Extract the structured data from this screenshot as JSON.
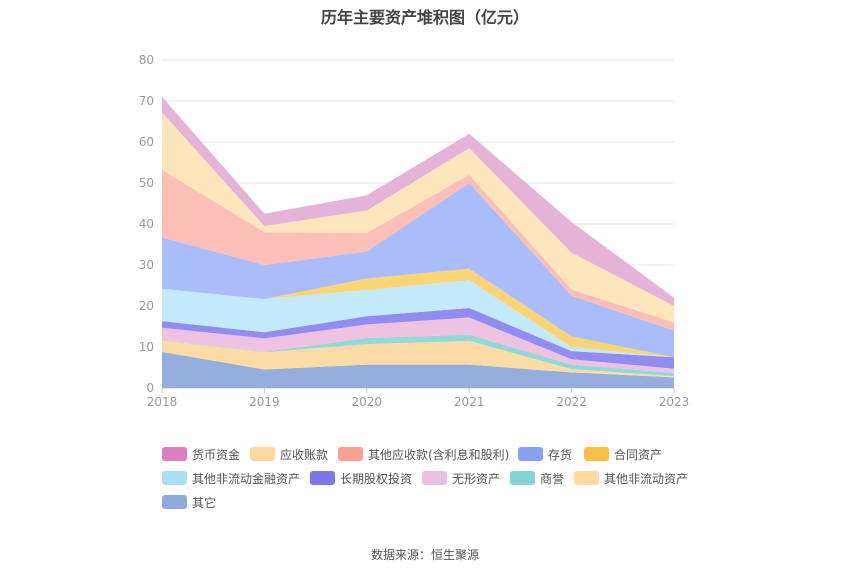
{
  "chart_data": {
    "type": "area",
    "stacked": true,
    "title": "历年主要资产堆积图（亿元）",
    "xlabel": "",
    "ylabel": "",
    "categories": [
      "2018",
      "2019",
      "2020",
      "2021",
      "2022",
      "2023"
    ],
    "ylim": [
      0,
      80
    ],
    "yticks": [
      0,
      10,
      20,
      30,
      40,
      50,
      60,
      70,
      80
    ],
    "grid": true,
    "legend_position": "bottom",
    "series": [
      {
        "name": "其它",
        "color": "#8faadc",
        "values": [
          8.8,
          4.5,
          5.7,
          5.7,
          3.8,
          2.6
        ]
      },
      {
        "name": "其他非流动资产",
        "color": "#fdd9a0",
        "values": [
          2.8,
          4.2,
          5.0,
          5.8,
          0.8,
          0.3
        ]
      },
      {
        "name": "商誉",
        "color": "#8dd6d6",
        "values": [
          0.1,
          0.1,
          1.5,
          1.5,
          1.1,
          0.8
        ]
      },
      {
        "name": "无形资产",
        "color": "#eebfe0",
        "values": [
          3.0,
          3.3,
          3.3,
          4.2,
          1.3,
          1.0
        ]
      },
      {
        "name": "长期股权投资",
        "color": "#8b86ee",
        "values": [
          1.6,
          1.5,
          2.0,
          2.3,
          2.0,
          2.8
        ]
      },
      {
        "name": "其他非流动金融资产",
        "color": "#bfe9fb",
        "values": [
          7.9,
          8.1,
          6.4,
          6.8,
          1.0,
          0.0
        ]
      },
      {
        "name": "合同资产",
        "color": "#fad36f",
        "values": [
          0.0,
          0.0,
          2.8,
          2.8,
          2.6,
          0.0
        ]
      },
      {
        "name": "存货",
        "color": "#a6b8fb",
        "values": [
          12.5,
          8.3,
          6.6,
          20.9,
          9.9,
          6.5
        ]
      },
      {
        "name": "其他应收款(含利息和股利)",
        "color": "#fbbcb3",
        "values": [
          16.5,
          8.0,
          4.5,
          2.0,
          1.5,
          2.0
        ]
      },
      {
        "name": "应收账款",
        "color": "#fde4b8",
        "values": [
          14.0,
          1.5,
          5.5,
          6.5,
          9.0,
          4.0
        ]
      },
      {
        "name": "货币资金",
        "color": "#e5afd6",
        "values": [
          3.8,
          3.0,
          3.7,
          3.5,
          7.5,
          2.0
        ]
      }
    ],
    "legend_order": [
      "货币资金",
      "应收账款",
      "其他应收款(含利息和股利)",
      "存货",
      "合同资产",
      "其他非流动金融资产",
      "长期股权投资",
      "无形资产",
      "商誉",
      "其他非流动资产",
      "其它"
    ],
    "legend_colors": {
      "货币资金": "#db7fc0",
      "应收账款": "#fdd9a0",
      "其他应收款(含利息和股利)": "#f8a093",
      "存货": "#85a2f5",
      "合同资产": "#f8c040",
      "其他非流动金融资产": "#a8dff5",
      "长期股权投资": "#7b77eb",
      "无形资产": "#ecbedf",
      "商誉": "#86d3d3",
      "其他非流动资产": "#fdd9a0",
      "其它": "#8faadc"
    }
  },
  "footer": {
    "source": "数据来源：恒生聚源"
  }
}
